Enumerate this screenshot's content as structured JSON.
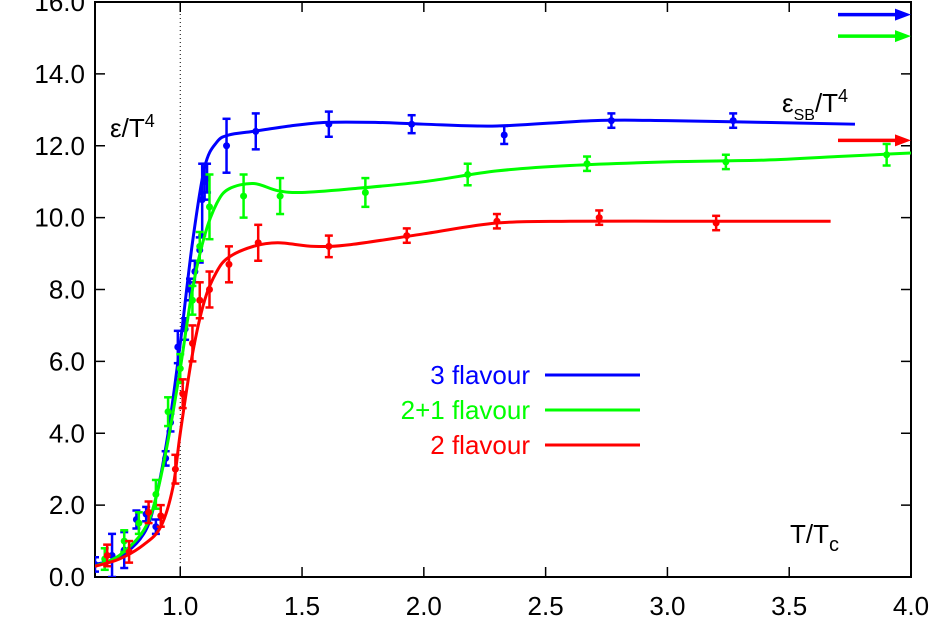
{
  "chart_data": {
    "type": "line",
    "xlabel": "T/T",
    "xlabel_sub": "c",
    "ylabel": "ε/T",
    "ylabel_sup": "4",
    "sb_label": "ε",
    "sb_label_sub": "SB",
    "sb_label_rest": "/T",
    "sb_label_sup": "4",
    "xlim": [
      0.65,
      4.0
    ],
    "ylim": [
      0.0,
      16.0
    ],
    "xticks": [
      1.0,
      1.5,
      2.0,
      2.5,
      3.0,
      3.5,
      4.0
    ],
    "xtick_labels": [
      "1.0",
      "1.5",
      "2.0",
      "2.5",
      "3.0",
      "3.5",
      "4.0"
    ],
    "yticks": [
      0,
      2,
      4,
      6,
      8,
      10,
      12,
      14,
      16
    ],
    "ytick_labels": [
      "0.0",
      "2.0",
      "4.0",
      "6.0",
      "8.0",
      "10.0",
      "12.0",
      "14.0",
      "16.0"
    ],
    "vline_x": 1.0,
    "legend_position": "center",
    "series": [
      {
        "name": "3 flavour",
        "color": "#0000ff",
        "sb_limit": 15.65,
        "points": [
          [
            0.65,
            0.35
          ],
          [
            0.72,
            0.6
          ],
          [
            0.77,
            0.75
          ],
          [
            0.82,
            1.6
          ],
          [
            0.86,
            1.75
          ],
          [
            0.9,
            1.4
          ],
          [
            0.94,
            3.3
          ],
          [
            0.96,
            4.3
          ],
          [
            0.99,
            6.4
          ],
          [
            1.02,
            6.9
          ],
          [
            1.04,
            8.0
          ],
          [
            1.06,
            8.5
          ],
          [
            1.08,
            9.1
          ],
          [
            1.09,
            10.5
          ],
          [
            1.1,
            11.0
          ],
          [
            1.11,
            11.1
          ],
          [
            1.19,
            12.0
          ],
          [
            1.31,
            12.4
          ],
          [
            1.61,
            12.6
          ],
          [
            1.95,
            12.6
          ],
          [
            2.33,
            12.3
          ],
          [
            2.77,
            12.7
          ],
          [
            3.27,
            12.7
          ]
        ],
        "errors": [
          0.2,
          0.6,
          0.5,
          0.25,
          0.2,
          0.2,
          0.2,
          0.25,
          0.45,
          0.3,
          0.3,
          0.3,
          0.35,
          1.0,
          0.5,
          0.4,
          0.75,
          0.5,
          0.35,
          0.25,
          0.25,
          0.2,
          0.2
        ],
        "curve": [
          [
            0.65,
            0.35
          ],
          [
            0.75,
            0.55
          ],
          [
            0.85,
            1.2
          ],
          [
            0.9,
            2.2
          ],
          [
            0.95,
            4.0
          ],
          [
            1.0,
            6.5
          ],
          [
            1.05,
            9.3
          ],
          [
            1.1,
            11.4
          ],
          [
            1.15,
            12.1
          ],
          [
            1.2,
            12.3
          ],
          [
            1.3,
            12.4
          ],
          [
            1.45,
            12.55
          ],
          [
            1.6,
            12.65
          ],
          [
            1.8,
            12.65
          ],
          [
            2.0,
            12.6
          ],
          [
            2.3,
            12.55
          ],
          [
            2.7,
            12.7
          ],
          [
            3.0,
            12.7
          ],
          [
            3.4,
            12.65
          ],
          [
            3.77,
            12.6
          ]
        ]
      },
      {
        "name": "2+1 flavour",
        "color": "#00ff00",
        "sb_limit": 15.05,
        "points": [
          [
            0.69,
            0.5
          ],
          [
            0.77,
            1.0
          ],
          [
            0.83,
            1.5
          ],
          [
            0.9,
            2.3
          ],
          [
            0.95,
            4.6
          ],
          [
            1.0,
            5.8
          ],
          [
            1.05,
            7.7
          ],
          [
            1.08,
            9.2
          ],
          [
            1.12,
            10.3
          ],
          [
            1.26,
            10.6
          ],
          [
            1.41,
            10.6
          ],
          [
            1.76,
            10.7
          ],
          [
            2.18,
            11.2
          ],
          [
            2.67,
            11.5
          ],
          [
            3.24,
            11.55
          ],
          [
            3.9,
            11.75
          ]
        ],
        "errors": [
          0.3,
          0.3,
          0.3,
          0.4,
          0.4,
          0.4,
          0.4,
          0.4,
          0.9,
          0.6,
          0.5,
          0.4,
          0.3,
          0.2,
          0.2,
          0.3
        ],
        "curve": [
          [
            0.65,
            0.3
          ],
          [
            0.75,
            0.6
          ],
          [
            0.85,
            1.3
          ],
          [
            0.9,
            2.2
          ],
          [
            0.95,
            3.8
          ],
          [
            1.0,
            5.8
          ],
          [
            1.05,
            8.0
          ],
          [
            1.1,
            9.5
          ],
          [
            1.15,
            10.4
          ],
          [
            1.2,
            10.8
          ],
          [
            1.3,
            10.95
          ],
          [
            1.4,
            10.75
          ],
          [
            1.5,
            10.7
          ],
          [
            1.7,
            10.8
          ],
          [
            2.0,
            11.0
          ],
          [
            2.3,
            11.3
          ],
          [
            2.6,
            11.45
          ],
          [
            3.0,
            11.55
          ],
          [
            3.4,
            11.6
          ],
          [
            3.7,
            11.7
          ],
          [
            4.0,
            11.8
          ]
        ]
      },
      {
        "name": "2 flavour",
        "color": "#ff0000",
        "sb_limit": 12.15,
        "points": [
          [
            0.7,
            0.6
          ],
          [
            0.79,
            0.7
          ],
          [
            0.87,
            1.8
          ],
          [
            0.92,
            1.7
          ],
          [
            0.98,
            3.0
          ],
          [
            1.01,
            5.1
          ],
          [
            1.05,
            6.5
          ],
          [
            1.08,
            7.7
          ],
          [
            1.12,
            8.0
          ],
          [
            1.2,
            8.7
          ],
          [
            1.32,
            9.3
          ],
          [
            1.61,
            9.2
          ],
          [
            1.93,
            9.5
          ],
          [
            2.3,
            9.9
          ],
          [
            2.72,
            10.0
          ],
          [
            3.2,
            9.85
          ]
        ],
        "errors": [
          0.3,
          0.3,
          0.3,
          0.3,
          0.4,
          0.4,
          0.5,
          0.5,
          0.5,
          0.5,
          0.5,
          0.3,
          0.2,
          0.2,
          0.2,
          0.2
        ],
        "curve": [
          [
            0.65,
            0.3
          ],
          [
            0.75,
            0.5
          ],
          [
            0.85,
            0.9
          ],
          [
            0.92,
            1.4
          ],
          [
            0.97,
            2.5
          ],
          [
            1.0,
            4.0
          ],
          [
            1.05,
            6.2
          ],
          [
            1.1,
            7.7
          ],
          [
            1.15,
            8.5
          ],
          [
            1.2,
            8.9
          ],
          [
            1.3,
            9.2
          ],
          [
            1.4,
            9.3
          ],
          [
            1.55,
            9.2
          ],
          [
            1.7,
            9.25
          ],
          [
            2.0,
            9.55
          ],
          [
            2.3,
            9.85
          ],
          [
            2.6,
            9.9
          ],
          [
            3.0,
            9.9
          ],
          [
            3.4,
            9.9
          ],
          [
            3.67,
            9.9
          ]
        ]
      }
    ]
  }
}
